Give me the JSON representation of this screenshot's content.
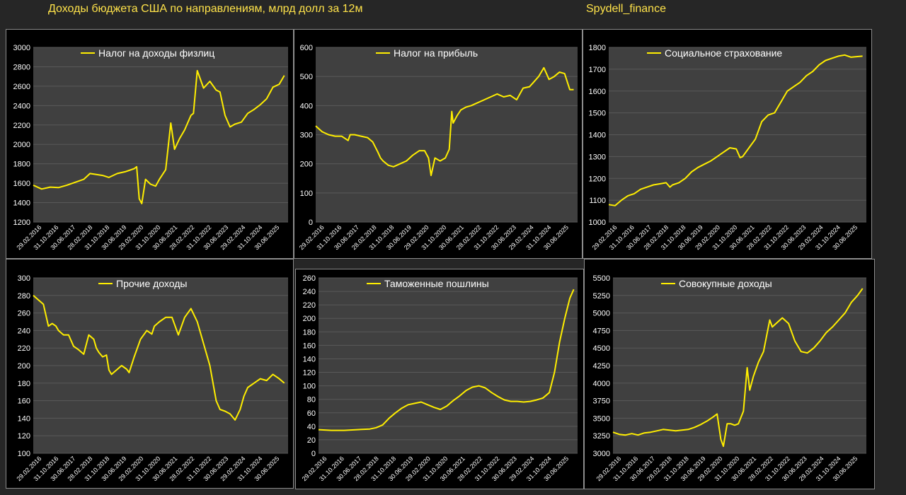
{
  "header": {
    "title": "Доходы бюджета США по направлениям, млрд долл за 12м",
    "brand": "Spydell_finance"
  },
  "colors": {
    "line": "#ffee00",
    "plot_bg": "#404040",
    "panel_bg": "#000000",
    "text": "#ffffff"
  },
  "x_tick_labels": [
    "29.02.2016",
    "31.10.2016",
    "30.06.2017",
    "28.02.2018",
    "31.10.2018",
    "30.06.2019",
    "29.02.2020",
    "31.10.2020",
    "30.06.2021",
    "28.02.2022",
    "31.10.2022",
    "30.06.2023",
    "29.02.2024",
    "31.10.2024",
    "30.06.2025"
  ],
  "chart_data": [
    {
      "type": "line",
      "title": "",
      "legend": "Налог на доходы физлиц",
      "x": [
        2016.0,
        2016.33,
        2016.67,
        2017.0,
        2017.33,
        2017.67,
        2018.0,
        2018.25,
        2018.5,
        2018.75,
        2019.0,
        2019.33,
        2019.67,
        2020.0,
        2020.1,
        2020.2,
        2020.3,
        2020.45,
        2020.65,
        2020.85,
        2021.0,
        2021.25,
        2021.45,
        2021.6,
        2021.8,
        2022.0,
        2022.25,
        2022.35,
        2022.5,
        2022.75,
        2023.0,
        2023.25,
        2023.4,
        2023.6,
        2023.8,
        2024.0,
        2024.25,
        2024.5,
        2024.75,
        2025.0,
        2025.25,
        2025.5,
        2025.75,
        2025.95
      ],
      "y": [
        1580,
        1540,
        1560,
        1555,
        1580,
        1610,
        1640,
        1700,
        1690,
        1680,
        1660,
        1700,
        1720,
        1750,
        1770,
        1440,
        1390,
        1640,
        1590,
        1570,
        1640,
        1740,
        2220,
        1950,
        2060,
        2150,
        2300,
        2320,
        2760,
        2580,
        2650,
        2560,
        2540,
        2300,
        2180,
        2210,
        2230,
        2320,
        2360,
        2410,
        2470,
        2590,
        2620,
        2710
      ],
      "xlim": [
        2016.0,
        2026.1
      ],
      "ylim": [
        1200,
        3000
      ],
      "yticks": [
        1200,
        1400,
        1600,
        1800,
        2000,
        2200,
        2400,
        2600,
        2800,
        3000
      ]
    },
    {
      "type": "line",
      "title": "",
      "legend": "Налог на прибыль",
      "x": [
        2016.0,
        2016.25,
        2016.5,
        2016.75,
        2017.0,
        2017.25,
        2017.33,
        2017.5,
        2017.75,
        2018.0,
        2018.2,
        2018.4,
        2018.5,
        2018.6,
        2018.8,
        2019.0,
        2019.25,
        2019.5,
        2019.75,
        2020.0,
        2020.2,
        2020.35,
        2020.45,
        2020.6,
        2020.8,
        2021.0,
        2021.15,
        2021.25,
        2021.3,
        2021.45,
        2021.6,
        2021.8,
        2022.0,
        2022.25,
        2022.5,
        2022.75,
        2023.0,
        2023.25,
        2023.5,
        2023.75,
        2024.0,
        2024.25,
        2024.4,
        2024.6,
        2024.8,
        2025.0,
        2025.2,
        2025.4,
        2025.6,
        2025.8,
        2025.95
      ],
      "y": [
        330,
        310,
        300,
        295,
        295,
        280,
        300,
        300,
        295,
        290,
        275,
        240,
        220,
        210,
        195,
        190,
        200,
        210,
        230,
        245,
        245,
        220,
        160,
        220,
        210,
        220,
        250,
        380,
        340,
        365,
        385,
        395,
        400,
        410,
        420,
        430,
        440,
        430,
        435,
        420,
        460,
        465,
        480,
        500,
        530,
        490,
        500,
        515,
        510,
        455,
        455
      ],
      "xlim": [
        2016.0,
        2026.1
      ],
      "ylim": [
        0,
        600
      ],
      "yticks": [
        0,
        100,
        200,
        300,
        400,
        500,
        600
      ]
    },
    {
      "type": "line",
      "title": "",
      "legend": "Социальное страхование",
      "x": [
        2016.0,
        2016.25,
        2016.5,
        2016.75,
        2017.0,
        2017.25,
        2017.5,
        2017.75,
        2018.0,
        2018.25,
        2018.4,
        2018.5,
        2018.75,
        2019.0,
        2019.25,
        2019.5,
        2019.75,
        2020.0,
        2020.25,
        2020.5,
        2020.75,
        2021.0,
        2021.15,
        2021.25,
        2021.5,
        2021.75,
        2022.0,
        2022.25,
        2022.5,
        2022.6,
        2022.75,
        2023.0,
        2023.25,
        2023.5,
        2023.75,
        2024.0,
        2024.25,
        2024.5,
        2024.75,
        2025.0,
        2025.25,
        2025.5,
        2025.75,
        2025.95
      ],
      "y": [
        1080,
        1075,
        1100,
        1120,
        1130,
        1150,
        1160,
        1170,
        1175,
        1180,
        1160,
        1170,
        1180,
        1200,
        1230,
        1250,
        1265,
        1280,
        1300,
        1320,
        1340,
        1335,
        1295,
        1300,
        1340,
        1380,
        1460,
        1490,
        1500,
        1520,
        1550,
        1600,
        1620,
        1640,
        1670,
        1690,
        1720,
        1740,
        1750,
        1760,
        1765,
        1755,
        1758,
        1760
      ],
      "xlim": [
        2016.0,
        2026.1
      ],
      "ylim": [
        1000,
        1800
      ],
      "yticks": [
        1000,
        1100,
        1200,
        1300,
        1400,
        1500,
        1600,
        1700,
        1800
      ]
    },
    {
      "type": "line",
      "title": "",
      "legend": "Прочие доходы",
      "x": [
        2016.0,
        2016.2,
        2016.4,
        2016.6,
        2016.75,
        2016.9,
        2017.0,
        2017.2,
        2017.4,
        2017.6,
        2017.8,
        2018.0,
        2018.2,
        2018.4,
        2018.5,
        2018.6,
        2018.75,
        2018.9,
        2019.0,
        2019.1,
        2019.3,
        2019.5,
        2019.7,
        2019.8,
        2020.0,
        2020.25,
        2020.5,
        2020.7,
        2020.8,
        2021.0,
        2021.25,
        2021.5,
        2021.75,
        2022.0,
        2022.25,
        2022.5,
        2022.75,
        2023.0,
        2023.25,
        2023.4,
        2023.6,
        2023.8,
        2024.0,
        2024.2,
        2024.35,
        2024.5,
        2024.75,
        2025.0,
        2025.25,
        2025.5,
        2025.75,
        2025.95
      ],
      "y": [
        280,
        275,
        270,
        245,
        248,
        245,
        240,
        235,
        235,
        222,
        218,
        213,
        235,
        230,
        220,
        215,
        210,
        212,
        195,
        190,
        195,
        200,
        196,
        192,
        210,
        230,
        240,
        236,
        245,
        250,
        255,
        255,
        235,
        255,
        265,
        250,
        225,
        200,
        160,
        150,
        148,
        145,
        138,
        150,
        165,
        175,
        180,
        185,
        183,
        190,
        185,
        180
      ],
      "xlim": [
        2016.0,
        2026.1
      ],
      "ylim": [
        100,
        300
      ],
      "yticks": [
        100,
        120,
        140,
        160,
        180,
        200,
        220,
        240,
        260,
        280,
        300
      ]
    },
    {
      "type": "line",
      "title": "",
      "legend": "Таможенные пошлины",
      "x": [
        2016.0,
        2016.5,
        2017.0,
        2017.5,
        2018.0,
        2018.25,
        2018.5,
        2018.75,
        2019.0,
        2019.25,
        2019.5,
        2019.75,
        2020.0,
        2020.25,
        2020.5,
        2020.75,
        2021.0,
        2021.25,
        2021.5,
        2021.75,
        2022.0,
        2022.25,
        2022.5,
        2022.75,
        2023.0,
        2023.25,
        2023.5,
        2023.75,
        2024.0,
        2024.25,
        2024.5,
        2024.75,
        2025.0,
        2025.2,
        2025.4,
        2025.6,
        2025.8,
        2025.95
      ],
      "y": [
        35,
        34,
        34,
        35,
        36,
        38,
        42,
        52,
        60,
        67,
        72,
        74,
        76,
        72,
        68,
        65,
        70,
        78,
        85,
        93,
        98,
        100,
        97,
        90,
        84,
        79,
        77,
        77,
        76,
        77,
        79,
        82,
        90,
        120,
        165,
        200,
        230,
        243
      ],
      "xlim": [
        2016.0,
        2026.1
      ],
      "ylim": [
        0,
        260
      ],
      "yticks": [
        0,
        20,
        40,
        60,
        80,
        100,
        120,
        140,
        160,
        180,
        200,
        220,
        240,
        260
      ]
    },
    {
      "type": "line",
      "title": "",
      "legend": "Совокупные доходы",
      "x": [
        2016.0,
        2016.25,
        2016.5,
        2016.75,
        2017.0,
        2017.25,
        2017.5,
        2017.75,
        2018.0,
        2018.25,
        2018.5,
        2018.75,
        2019.0,
        2019.25,
        2019.5,
        2019.75,
        2020.0,
        2020.15,
        2020.3,
        2020.4,
        2020.55,
        2020.7,
        2020.85,
        2021.0,
        2021.2,
        2021.35,
        2021.45,
        2021.6,
        2021.8,
        2022.0,
        2022.25,
        2022.35,
        2022.5,
        2022.75,
        2023.0,
        2023.25,
        2023.5,
        2023.75,
        2024.0,
        2024.25,
        2024.5,
        2024.75,
        2025.0,
        2025.25,
        2025.5,
        2025.75,
        2025.95
      ],
      "y": [
        3300,
        3270,
        3260,
        3280,
        3260,
        3290,
        3300,
        3320,
        3340,
        3330,
        3320,
        3330,
        3340,
        3370,
        3410,
        3460,
        3520,
        3560,
        3200,
        3100,
        3420,
        3420,
        3400,
        3420,
        3600,
        4220,
        3900,
        4100,
        4300,
        4450,
        4900,
        4800,
        4850,
        4930,
        4850,
        4600,
        4450,
        4430,
        4500,
        4600,
        4720,
        4800,
        4900,
        5000,
        5150,
        5250,
        5350
      ],
      "xlim": [
        2016.0,
        2026.1
      ],
      "ylim": [
        3000,
        5500
      ],
      "yticks": [
        3000,
        3250,
        3500,
        3750,
        4000,
        4250,
        4500,
        4750,
        5000,
        5250,
        5500
      ]
    }
  ]
}
